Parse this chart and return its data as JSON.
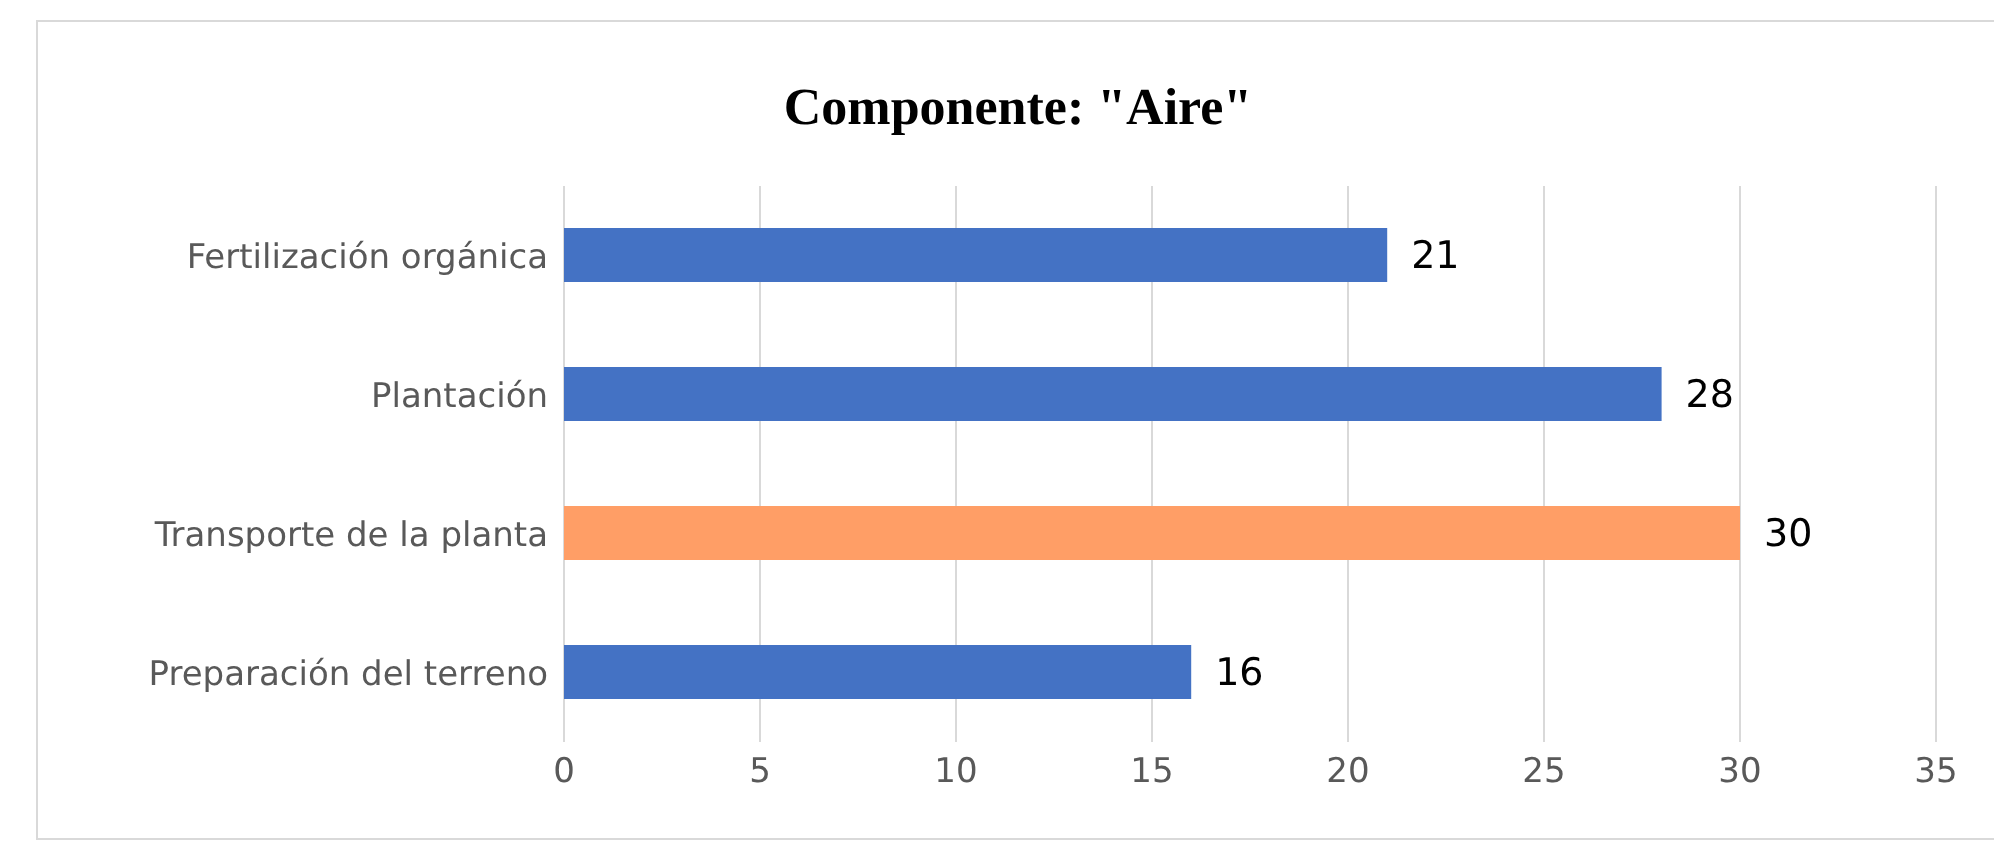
{
  "chart_data": {
    "type": "bar",
    "orientation": "horizontal",
    "title": "Componente: \"Aire\"",
    "categories": [
      "Fertilización orgánica",
      "Plantación",
      "Transporte de la planta",
      "Preparación del terreno"
    ],
    "values": [
      21,
      28,
      30,
      16
    ],
    "colors": [
      "#4472c4",
      "#4472c4",
      "#ff9e66",
      "#4472c4"
    ],
    "xlim": [
      0,
      35
    ],
    "xticks": [
      0,
      5,
      10,
      15,
      20,
      25,
      30,
      35
    ],
    "grid": "x",
    "data_labels": true
  }
}
